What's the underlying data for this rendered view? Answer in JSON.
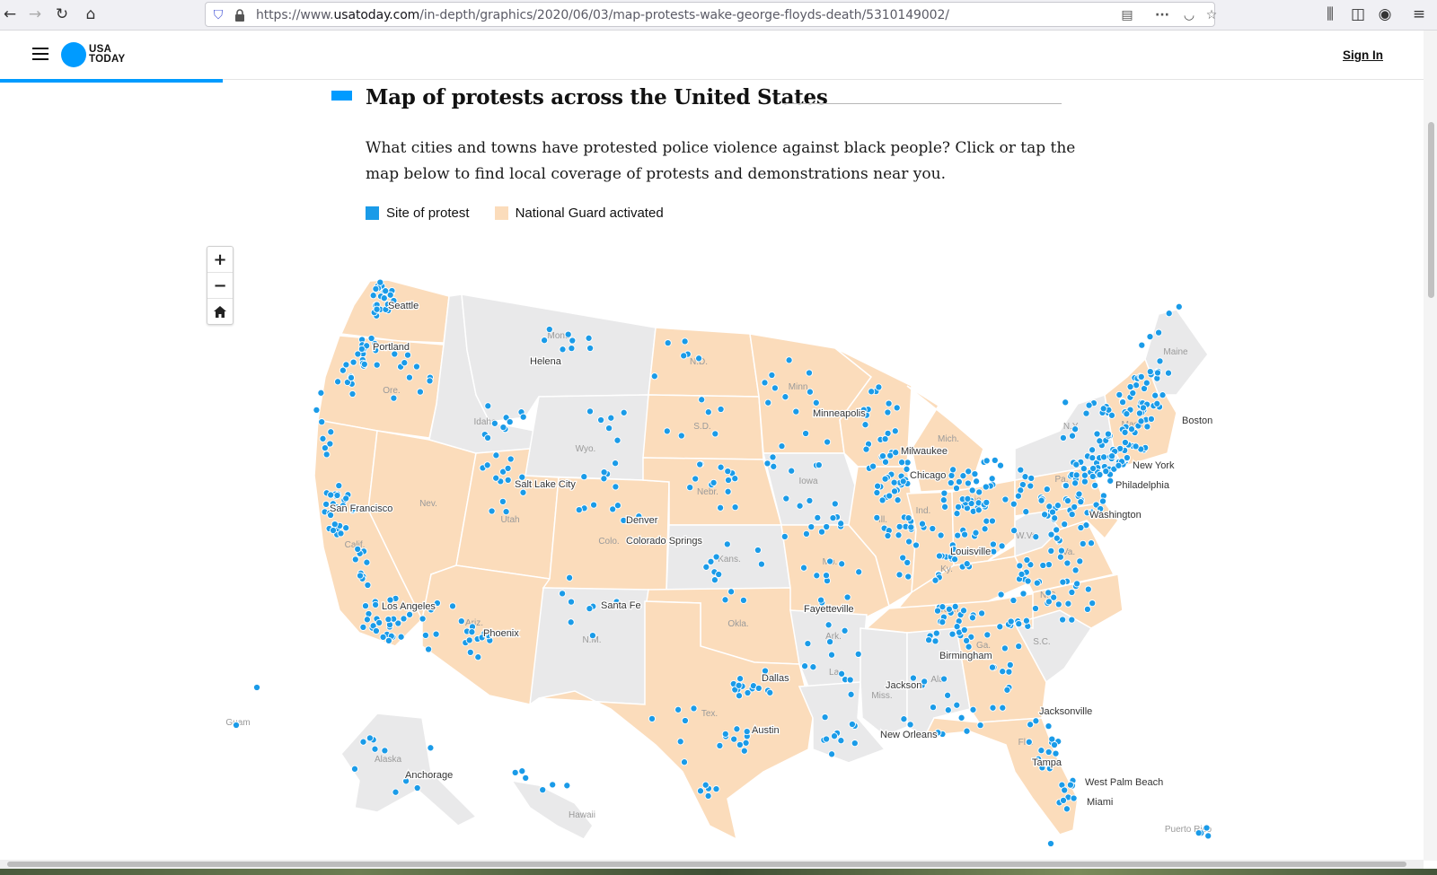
{
  "browser": {
    "url_prefix": "https://www.",
    "url_domain": "usatoday.com",
    "url_path": "/in-depth/graphics/2020/06/03/map-protests-wake-george-floyds-death/5310149002/",
    "icons": [
      "back-icon",
      "forward-icon",
      "reload-icon",
      "home-icon",
      "shield-icon",
      "lock-icon",
      "reader-icon",
      "more-icon",
      "pocket-icon",
      "bookmark-star-icon",
      "library-icon",
      "sidebar-icon",
      "account-icon",
      "menu-icon"
    ]
  },
  "header": {
    "logo_line1": "USA",
    "logo_line2": "TODAY",
    "sign_in": "Sign In",
    "colors": {
      "brand": "#009bff"
    }
  },
  "article": {
    "title": "Map of protests across the United States",
    "intro": "What cities and towns have protested police violence against black people? Click or tap the map below to find local coverage of protests and demonstrations near you.",
    "legend": [
      {
        "label": "Site of protest",
        "color": "#1a9be8"
      },
      {
        "label": "National Guard activated",
        "color": "#fbdcbb"
      }
    ]
  },
  "map": {
    "controls": {
      "zoom_in": "+",
      "zoom_out": "−",
      "home": "⌂"
    },
    "colors": {
      "guard": "#fbdcbb",
      "no_guard": "#e9e9ea",
      "border": "#ffffff",
      "dot": "#1a9be8",
      "dot_stroke": "#ffffff"
    },
    "cities": [
      "Seattle",
      "Portland",
      "Helena",
      "Minneapolis",
      "Milwaukee",
      "Chicago",
      "Boston",
      "New York",
      "Philadelphia",
      "Washington",
      "Salt Lake City",
      "San Francisco",
      "Denver",
      "Colorado Springs",
      "Louisville",
      "Santa Fe",
      "Fayetteville",
      "Los Angeles",
      "Phoenix",
      "Birmingham",
      "Dallas",
      "Jackson",
      "Austin",
      "New Orleans",
      "Jacksonville",
      "Tampa",
      "West Palm Beach",
      "Miami",
      "Anchorage"
    ],
    "states": [
      "N.D.",
      "Mont.",
      "Ore.",
      "Idaho",
      "S.D.",
      "Wyo.",
      "Minn.",
      "Mich.",
      "Maine",
      "N.Y.",
      "Mass.",
      "Iowa",
      "Nebr.",
      "Nev.",
      "Utah",
      "Calif.",
      "Colo.",
      "Kans.",
      "Mo.",
      "Ill.",
      "Ind.",
      "Ohio",
      "Pa.",
      "W.Va.",
      "Va.",
      "Ky.",
      "Tenn.",
      "N.C.",
      "S.C.",
      "Ga.",
      "Ala.",
      "Miss.",
      "Ark.",
      "La.",
      "Okla.",
      "N.M.",
      "Ariz.",
      "Tex.",
      "Fla.",
      "Alaska",
      "Hawaii",
      "Guam",
      "Puerto Rico"
    ]
  }
}
